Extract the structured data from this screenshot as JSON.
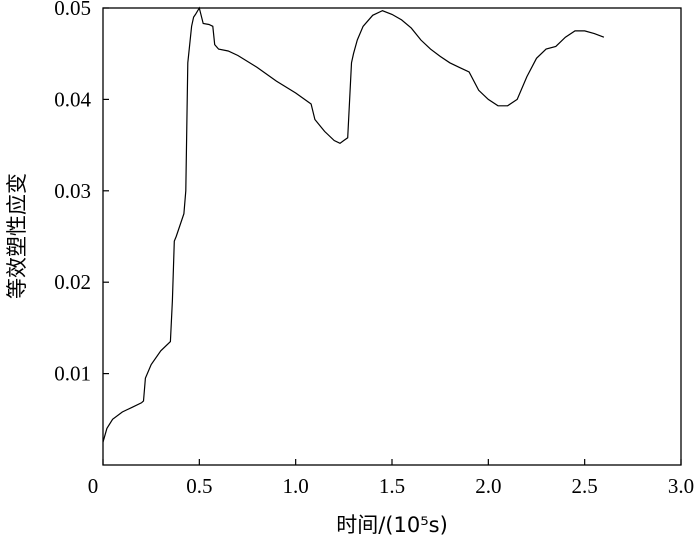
{
  "chart_data": {
    "type": "line",
    "title": "",
    "xlabel": "时间/(10⁵s)",
    "ylabel": "等效塑性应变",
    "xlim": [
      0,
      3.0
    ],
    "ylim": [
      0,
      0.05
    ],
    "x_ticks": [
      0,
      0.5,
      1.0,
      1.5,
      2.0,
      2.5,
      3.0
    ],
    "x_tick_labels": [
      "0",
      "0.5",
      "1.0",
      "1.5",
      "2.0",
      "2.5",
      "3.0"
    ],
    "y_ticks": [
      0.01,
      0.02,
      0.03,
      0.04,
      0.05
    ],
    "y_tick_labels": [
      "0.01",
      "0.02",
      "0.03",
      "0.04",
      "0.05"
    ],
    "grid": false,
    "line_color": "#000000",
    "series": [
      {
        "x": [
          0.0,
          0.02,
          0.05,
          0.1,
          0.15,
          0.2,
          0.21,
          0.22,
          0.25,
          0.3,
          0.35,
          0.36,
          0.37,
          0.38,
          0.42,
          0.43,
          0.44,
          0.45,
          0.46,
          0.47,
          0.48,
          0.5,
          0.52,
          0.55,
          0.57,
          0.58,
          0.6,
          0.65,
          0.7,
          0.8,
          0.9,
          1.0,
          1.08,
          1.1,
          1.15,
          1.2,
          1.23,
          1.25,
          1.27,
          1.29,
          1.3,
          1.32,
          1.35,
          1.4,
          1.45,
          1.5,
          1.55,
          1.6,
          1.65,
          1.7,
          1.75,
          1.8,
          1.85,
          1.9,
          1.95,
          2.0,
          2.05,
          2.1,
          2.15,
          2.2,
          2.25,
          2.3,
          2.35,
          2.4,
          2.45,
          2.5,
          2.55,
          2.6
        ],
        "y": [
          0.0025,
          0.004,
          0.005,
          0.0058,
          0.0063,
          0.0068,
          0.007,
          0.0095,
          0.011,
          0.0125,
          0.0135,
          0.018,
          0.0245,
          0.025,
          0.0275,
          0.03,
          0.044,
          0.046,
          0.048,
          0.049,
          0.0493,
          0.05,
          0.0483,
          0.0482,
          0.048,
          0.046,
          0.0455,
          0.0453,
          0.0448,
          0.0435,
          0.042,
          0.0407,
          0.0395,
          0.0378,
          0.0365,
          0.0355,
          0.0352,
          0.0355,
          0.0358,
          0.044,
          0.045,
          0.0465,
          0.048,
          0.0492,
          0.0497,
          0.0493,
          0.0487,
          0.0478,
          0.0465,
          0.0455,
          0.0447,
          0.044,
          0.0435,
          0.043,
          0.041,
          0.04,
          0.0393,
          0.0393,
          0.04,
          0.0425,
          0.0445,
          0.0455,
          0.0458,
          0.0468,
          0.0475,
          0.0475,
          0.0472,
          0.0468
        ]
      }
    ]
  }
}
